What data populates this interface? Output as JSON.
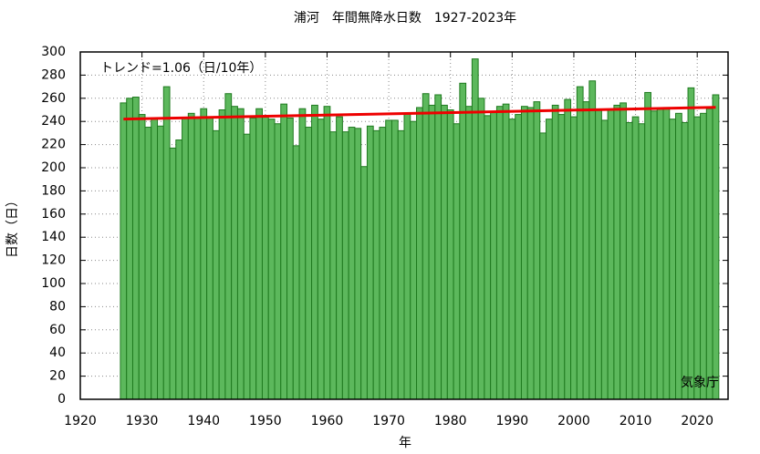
{
  "chart_data": {
    "type": "bar",
    "title": "浦河　年間無降水日数　1927-2023年",
    "x_label": "年",
    "y_label": "日数（日）",
    "annotations": [
      "トレンド=1.06（日/10年）",
      "気象庁"
    ],
    "x": [
      1927,
      1928,
      1929,
      1930,
      1931,
      1932,
      1933,
      1934,
      1935,
      1936,
      1937,
      1938,
      1939,
      1940,
      1941,
      1942,
      1943,
      1944,
      1945,
      1946,
      1947,
      1948,
      1949,
      1950,
      1951,
      1952,
      1953,
      1954,
      1955,
      1956,
      1957,
      1958,
      1959,
      1960,
      1961,
      1962,
      1963,
      1964,
      1965,
      1966,
      1967,
      1968,
      1969,
      1970,
      1971,
      1972,
      1973,
      1974,
      1975,
      1976,
      1977,
      1978,
      1979,
      1980,
      1981,
      1982,
      1983,
      1984,
      1985,
      1986,
      1987,
      1988,
      1989,
      1990,
      1991,
      1992,
      1993,
      1994,
      1995,
      1996,
      1997,
      1998,
      1999,
      2000,
      2001,
      2002,
      2003,
      2004,
      2005,
      2006,
      2007,
      2008,
      2009,
      2010,
      2011,
      2012,
      2013,
      2014,
      2015,
      2016,
      2017,
      2018,
      2019,
      2020,
      2021,
      2022,
      2023
    ],
    "values": [
      256,
      260,
      261,
      246,
      235,
      243,
      236,
      270,
      217,
      224,
      243,
      247,
      243,
      251,
      244,
      232,
      250,
      264,
      253,
      251,
      229,
      243,
      251,
      245,
      242,
      238,
      255,
      243,
      219,
      251,
      235,
      254,
      242,
      253,
      231,
      244,
      231,
      235,
      234,
      201,
      236,
      232,
      235,
      241,
      241,
      232,
      247,
      240,
      252,
      264,
      254,
      263,
      254,
      250,
      238,
      273,
      253,
      294,
      260,
      245,
      248,
      253,
      255,
      242,
      246,
      253,
      252,
      257,
      230,
      242,
      254,
      246,
      259,
      244,
      270,
      257,
      275,
      250,
      241,
      250,
      254,
      256,
      239,
      244,
      238,
      265,
      249,
      251,
      252,
      242,
      247,
      239,
      269,
      244,
      247,
      251,
      263
    ],
    "color": "#5cb85c",
    "edge_color": "#1f7a1f",
    "trend": {
      "x": [
        1927,
        2023
      ],
      "values": [
        242,
        252.2
      ],
      "color": "#ee0000"
    },
    "xlim": [
      1920,
      2025
    ],
    "xticks": [
      1920,
      1930,
      1940,
      1950,
      1960,
      1970,
      1980,
      1990,
      2000,
      2010,
      2020
    ],
    "ylim": [
      0,
      300
    ],
    "yticks": [
      0,
      20,
      40,
      60,
      80,
      100,
      120,
      140,
      160,
      180,
      200,
      220,
      240,
      260,
      280,
      300
    ],
    "grid": true
  }
}
